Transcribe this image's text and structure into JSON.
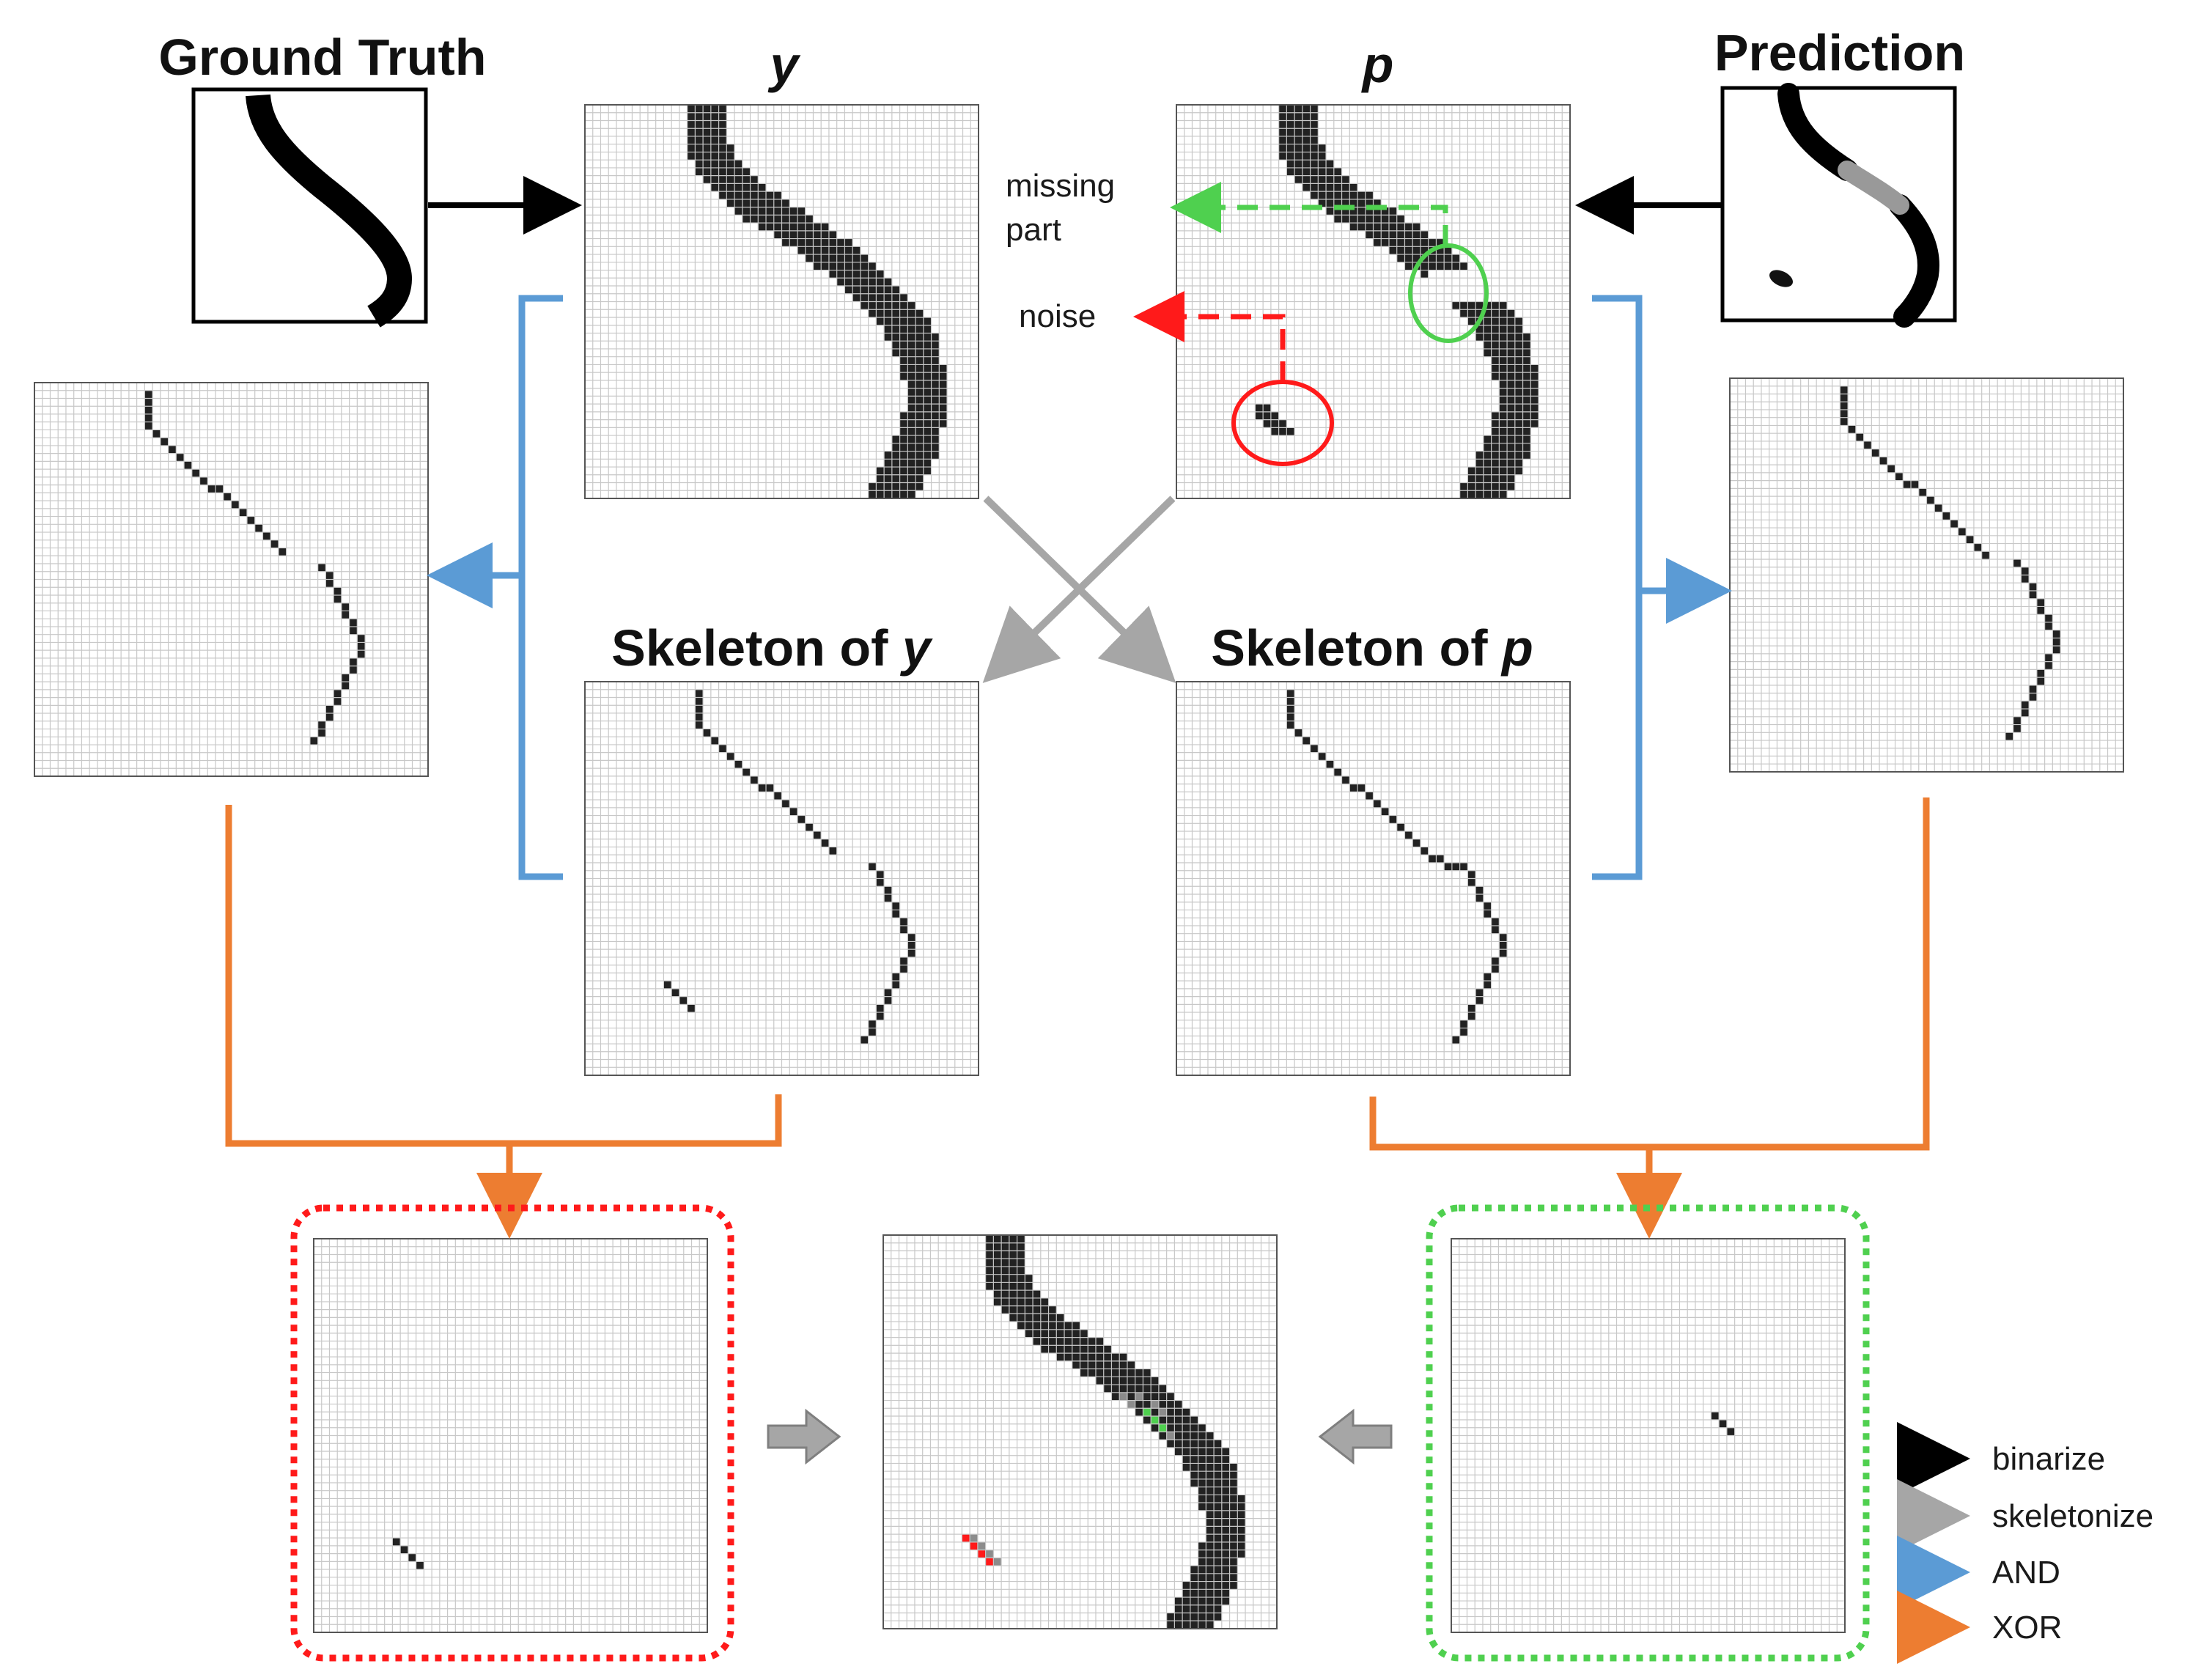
{
  "titles": {
    "ground_truth": "Ground Truth",
    "prediction": "Prediction",
    "y": "y",
    "p": "p",
    "skeleton_y_prefix": "Skeleton of ",
    "skeleton_y_var": "y",
    "skeleton_p_prefix": "Skeleton of ",
    "skeleton_p_var": "p"
  },
  "annotations": {
    "missing_line1": "missing",
    "missing_line2": "part",
    "noise": "noise"
  },
  "legend": [
    {
      "label": "binarize",
      "color": "#000000"
    },
    {
      "label": "skeletonize",
      "color": "#a6a6a6"
    },
    {
      "label": "AND",
      "color": "#5b9bd5"
    },
    {
      "label": "XOR",
      "color": "#ed7d31"
    }
  ],
  "colors": {
    "grid_line": "#c8c8c8",
    "cell_fill": "#222222",
    "missing_marker": "#4fd04f",
    "noise_marker": "#ff1a1a",
    "and_arrow": "#5b9bd5",
    "xor_arrow": "#ed7d31",
    "skeletonize_arrow": "#a6a6a6",
    "binarize_arrow": "#000000"
  }
}
